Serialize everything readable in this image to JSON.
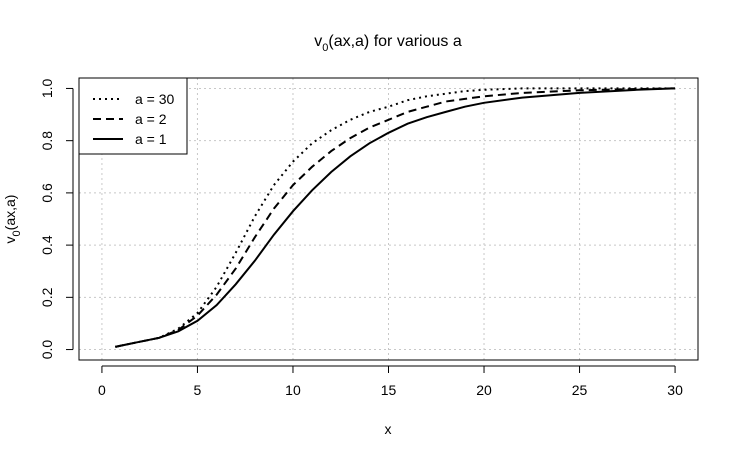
{
  "chart_data": {
    "type": "line",
    "title": {
      "base": "v",
      "sub": "0",
      "rest": "(ax,a) for various a"
    },
    "xlabel": "x",
    "ylabel": {
      "base": "v",
      "sub": "0",
      "rest": "(ax,a)"
    },
    "xlim": [
      -1.2,
      31.2
    ],
    "ylim": [
      -0.04,
      1.04
    ],
    "x_ticks": [
      0,
      5,
      10,
      15,
      20,
      25,
      30
    ],
    "x_tick_labels": [
      "0",
      "5",
      "10",
      "15",
      "20",
      "25",
      "30"
    ],
    "y_ticks": [
      0,
      0.2,
      0.4,
      0.6,
      0.8,
      1.0
    ],
    "y_tick_labels": [
      "0.0",
      "0.2",
      "0.4",
      "0.6",
      "0.8",
      "1.0"
    ],
    "grid": true,
    "legend_position": "top-left",
    "series": [
      {
        "name": "a = 30",
        "linestyle": "dotted",
        "x": [
          0.7,
          1,
          2,
          3,
          4,
          5,
          6,
          7,
          8,
          9,
          10,
          11,
          12,
          13,
          14,
          15,
          16,
          17,
          18,
          19,
          20,
          22,
          25,
          30
        ],
        "y": [
          0.01,
          0.015,
          0.03,
          0.045,
          0.08,
          0.14,
          0.24,
          0.37,
          0.51,
          0.63,
          0.72,
          0.79,
          0.84,
          0.88,
          0.91,
          0.93,
          0.955,
          0.97,
          0.98,
          0.99,
          0.995,
          1.0,
          1.0,
          1.0
        ]
      },
      {
        "name": "a = 2",
        "linestyle": "dashed",
        "x": [
          0.7,
          1,
          2,
          3,
          4,
          5,
          6,
          7,
          8,
          9,
          10,
          11,
          12,
          13,
          14,
          15,
          16,
          17,
          18,
          19,
          20,
          22,
          25,
          28,
          30
        ],
        "y": [
          0.01,
          0.015,
          0.03,
          0.045,
          0.075,
          0.13,
          0.21,
          0.31,
          0.43,
          0.54,
          0.63,
          0.7,
          0.76,
          0.81,
          0.85,
          0.88,
          0.91,
          0.93,
          0.95,
          0.96,
          0.97,
          0.983,
          0.993,
          0.998,
          1.0
        ]
      },
      {
        "name": "a = 1",
        "linestyle": "solid",
        "x": [
          0.7,
          1,
          2,
          3,
          4,
          5,
          6,
          7,
          8,
          9,
          10,
          11,
          12,
          13,
          14,
          15,
          16,
          17,
          18,
          19,
          20,
          22,
          25,
          28,
          30
        ],
        "y": [
          0.01,
          0.015,
          0.03,
          0.045,
          0.07,
          0.11,
          0.17,
          0.25,
          0.34,
          0.44,
          0.53,
          0.61,
          0.68,
          0.74,
          0.79,
          0.83,
          0.865,
          0.89,
          0.91,
          0.93,
          0.945,
          0.965,
          0.983,
          0.995,
          1.0
        ]
      }
    ]
  }
}
